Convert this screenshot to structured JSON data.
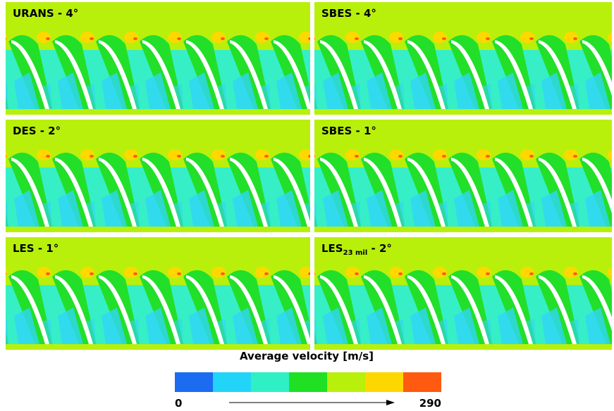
{
  "panels": [
    {
      "label": "URANS - 4°"
    },
    {
      "label": "SBES - 4°"
    },
    {
      "label": "DES - 2°"
    },
    {
      "label": "SBES - 1°"
    },
    {
      "label": "LES - 1°"
    },
    {
      "label": "LES",
      "subscript": "23 mil",
      "suffix": " - 2°"
    }
  ],
  "colorbar": {
    "title": "Average velocity [m/s]",
    "range": [
      0,
      290
    ],
    "ticks": [
      0,
      290
    ],
    "colors": [
      "#1c6cf2",
      "#22d4f8",
      "#2ef0c4",
      "#1fe023",
      "#b8f00c",
      "#ffd700",
      "#ff5a10"
    ]
  }
}
